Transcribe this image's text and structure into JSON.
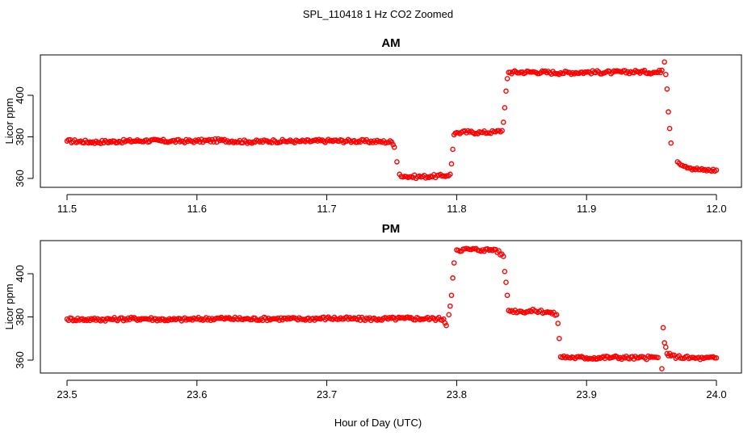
{
  "title": "SPL_110418  1 Hz CO2 Zoomed",
  "xlabel": "Hour of Day (UTC)",
  "colors": {
    "points": "#ff0000",
    "axes": "#000000"
  },
  "chart_data": [
    {
      "type": "scatter",
      "title": "AM",
      "xlabel": "",
      "ylabel": "Licor ppm",
      "xlim": [
        11.5,
        12.0
      ],
      "ylim": [
        358,
        418
      ],
      "xticks": [
        "11.5",
        "11.6",
        "11.7",
        "11.8",
        "11.9",
        "12.0"
      ],
      "yticks": [
        "360",
        "380",
        "400"
      ],
      "series": [
        {
          "x": [
            11.5,
            11.52,
            11.54,
            11.56,
            11.58,
            11.6,
            11.62,
            11.64,
            11.66,
            11.68,
            11.7,
            11.72,
            11.74,
            11.75,
            11.752,
            11.754,
            11.756,
            11.76,
            11.77,
            11.78,
            11.79,
            11.795,
            11.796,
            11.797,
            11.798,
            11.8,
            11.81,
            11.82,
            11.83,
            11.835,
            11.836,
            11.837,
            11.838,
            11.839,
            11.84,
            11.86,
            11.88,
            11.9,
            11.92,
            11.94,
            11.955,
            11.958,
            11.96,
            11.961,
            11.962,
            11.963,
            11.964,
            11.965,
            11.97,
            11.98,
            11.99,
            12.0
          ],
          "y": [
            378,
            377.5,
            377.8,
            378.2,
            377.9,
            378,
            378.3,
            377.6,
            378,
            377.8,
            378.1,
            378,
            377.7,
            377.5,
            375,
            368,
            362,
            361,
            360.8,
            361,
            361.2,
            362,
            367,
            374,
            381,
            382,
            382.3,
            382.1,
            382.4,
            383,
            387,
            394,
            402,
            408,
            411,
            411.2,
            410.8,
            411.1,
            411,
            411.3,
            411,
            412,
            416,
            410,
            403,
            392,
            384,
            377,
            368,
            365,
            364,
            364
          ]
        }
      ]
    },
    {
      "type": "scatter",
      "title": "PM",
      "xlabel": "",
      "ylabel": "Licor ppm",
      "xlim": [
        23.5,
        24.0
      ],
      "ylim": [
        353,
        416
      ],
      "xticks": [
        "23.5",
        "23.6",
        "23.7",
        "23.8",
        "23.9",
        "24.0"
      ],
      "yticks": [
        "360",
        "380",
        "400"
      ],
      "series": [
        {
          "x": [
            23.5,
            23.52,
            23.54,
            23.56,
            23.58,
            23.6,
            23.62,
            23.64,
            23.66,
            23.68,
            23.7,
            23.72,
            23.74,
            23.76,
            23.78,
            23.79,
            23.792,
            23.794,
            23.795,
            23.796,
            23.797,
            23.798,
            23.8,
            23.81,
            23.82,
            23.83,
            23.836,
            23.837,
            23.838,
            23.839,
            23.84,
            23.85,
            23.86,
            23.87,
            23.877,
            23.878,
            23.879,
            23.88,
            23.89,
            23.9,
            23.92,
            23.94,
            23.955,
            23.958,
            23.959,
            23.96,
            23.961,
            23.962,
            23.965,
            23.97,
            23.98,
            23.99,
            24.0
          ],
          "y": [
            379,
            378.8,
            379,
            379.2,
            378.7,
            379,
            379.3,
            379,
            379.2,
            379,
            379.4,
            379.1,
            379,
            379.3,
            379.2,
            379,
            376,
            381,
            385,
            390,
            398,
            405,
            411,
            411.3,
            411,
            411.2,
            408,
            401,
            396,
            390,
            383,
            382.5,
            382.8,
            382.3,
            381,
            377,
            370,
            361.5,
            361.2,
            361,
            361.3,
            361,
            361.2,
            356,
            375,
            368,
            366,
            363,
            362,
            361.5,
            361,
            360.8,
            361
          ]
        }
      ]
    }
  ]
}
